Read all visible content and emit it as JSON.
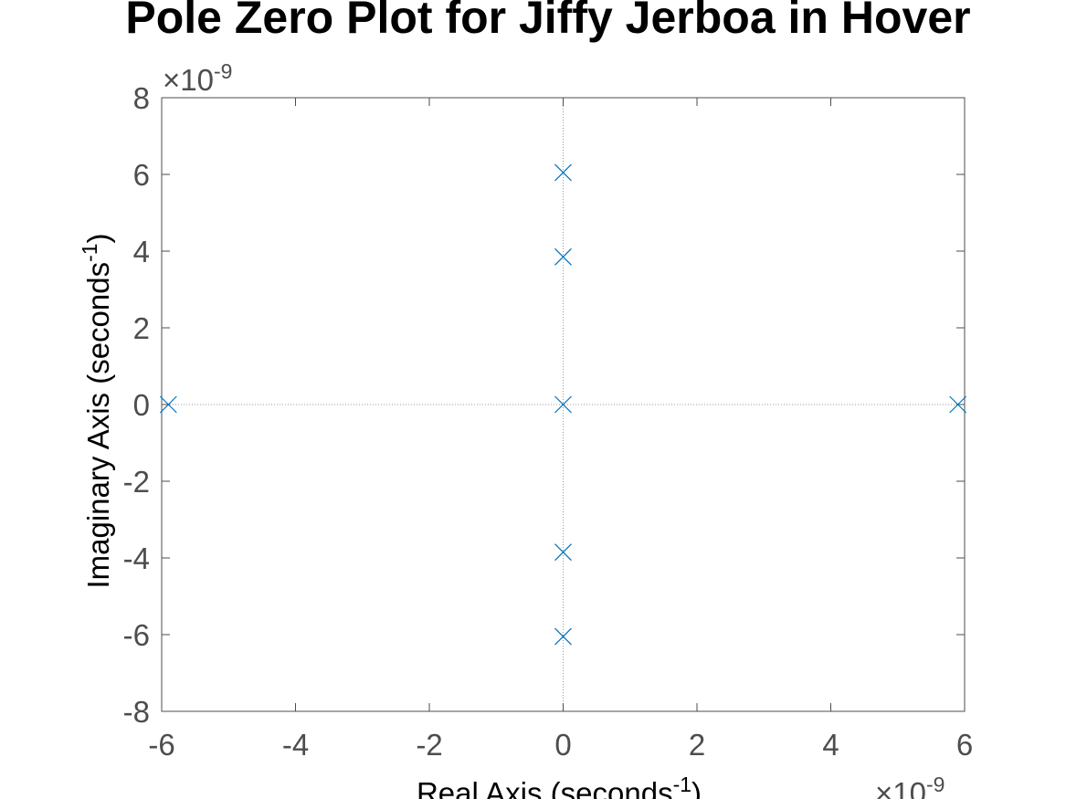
{
  "chart_data": {
    "type": "scatter",
    "title": "Pole Zero Plot for Jiffy Jerboa in Hover",
    "xlabel": {
      "text": "Real Axis (seconds",
      "superscript": "-1",
      "suffix": ")"
    },
    "ylabel": {
      "text": "Imaginary Axis (seconds",
      "superscript": "-1",
      "suffix": ")"
    },
    "x_exponent": {
      "base": "10",
      "power": "-9"
    },
    "y_exponent": {
      "base": "10",
      "power": "-9"
    },
    "xlim": [
      -6,
      6
    ],
    "ylim": [
      -8,
      8
    ],
    "xticks": [
      -6,
      -4,
      -2,
      0,
      2,
      4,
      6
    ],
    "yticks": [
      -8,
      -6,
      -4,
      -2,
      0,
      2,
      4,
      6,
      8
    ],
    "xtick_labels": [
      "-6",
      "-4",
      "-2",
      "0",
      "2",
      "4",
      "6"
    ],
    "ytick_labels": [
      "-8",
      "-6",
      "-4",
      "-2",
      "0",
      "2",
      "4",
      "6",
      "8"
    ],
    "grid": false,
    "marker": "x",
    "marker_color": "#0072bd",
    "axis_color": "#4d4d4d",
    "zero_line_color": "#999999",
    "points": [
      {
        "x": -5.9,
        "y": 0
      },
      {
        "x": 5.9,
        "y": 0
      },
      {
        "x": 0,
        "y": 0
      },
      {
        "x": 0,
        "y": 3.85
      },
      {
        "x": 0,
        "y": -3.85
      },
      {
        "x": 0,
        "y": 6.05
      },
      {
        "x": 0,
        "y": -6.05
      }
    ]
  }
}
